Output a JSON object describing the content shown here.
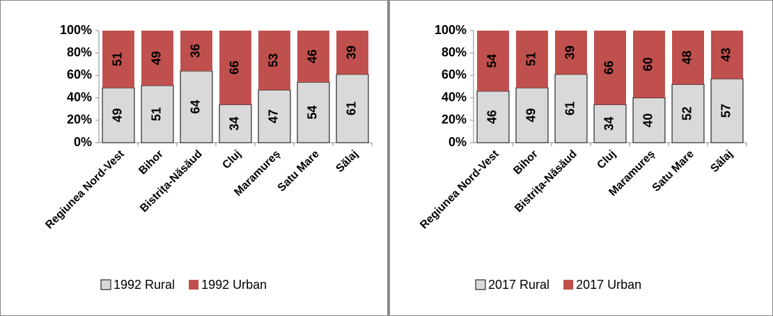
{
  "chart_data": [
    {
      "type": "bar",
      "stacked": true,
      "categories": [
        "Regiunea Nord-Vest",
        "Bihor",
        "Bistrița-Năsăud",
        "Cluj",
        "Maramureș",
        "Satu Mare",
        "Sălaj"
      ],
      "series": [
        {
          "name": "1992 Rural",
          "color": "#d9d9d9",
          "values": [
            49,
            51,
            64,
            34,
            47,
            54,
            61
          ]
        },
        {
          "name": "1992 Urban",
          "color": "#c0504d",
          "values": [
            51,
            49,
            36,
            66,
            53,
            46,
            39
          ]
        }
      ],
      "ylim": [
        0,
        100
      ],
      "yticks": [
        {
          "value": 0,
          "label": "0%"
        },
        {
          "value": 20,
          "label": "20%"
        },
        {
          "value": 40,
          "label": "40%"
        },
        {
          "value": 60,
          "label": "60%"
        },
        {
          "value": 80,
          "label": "80%"
        },
        {
          "value": 100,
          "label": "100%"
        }
      ],
      "grid": false,
      "legend": "bottom"
    },
    {
      "type": "bar",
      "stacked": true,
      "categories": [
        "Regiunea Nord-Vest",
        "Bihor",
        "Bistrița-Năsăud",
        "Cluj",
        "Maramureș",
        "Satu Mare",
        "Sălaj"
      ],
      "series": [
        {
          "name": "2017 Rural",
          "color": "#d9d9d9",
          "values": [
            46,
            49,
            61,
            34,
            40,
            52,
            57
          ]
        },
        {
          "name": "2017 Urban",
          "color": "#c0504d",
          "values": [
            54,
            51,
            39,
            66,
            60,
            48,
            43
          ]
        }
      ],
      "ylim": [
        0,
        100
      ],
      "yticks": [
        {
          "value": 0,
          "label": "0%"
        },
        {
          "value": 20,
          "label": "20%"
        },
        {
          "value": 40,
          "label": "40%"
        },
        {
          "value": 60,
          "label": "60%"
        },
        {
          "value": 80,
          "label": "80%"
        },
        {
          "value": 100,
          "label": "100%"
        }
      ],
      "grid": false,
      "legend": "bottom"
    }
  ]
}
